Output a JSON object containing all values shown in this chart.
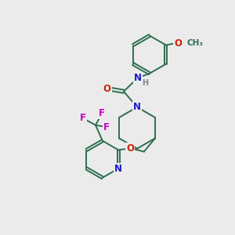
{
  "bg_color": "#ebebeb",
  "bond_color": "#2d6e4e",
  "N_color": "#1a1acc",
  "O_color": "#cc2200",
  "F_color": "#cc00cc",
  "H_color": "#888888",
  "fs": 8.5,
  "fss": 7.0,
  "lw": 1.4,
  "figsize": [
    3.0,
    3.0
  ],
  "dpi": 100,
  "xlim": [
    0,
    10
  ],
  "ylim": [
    0,
    10
  ]
}
